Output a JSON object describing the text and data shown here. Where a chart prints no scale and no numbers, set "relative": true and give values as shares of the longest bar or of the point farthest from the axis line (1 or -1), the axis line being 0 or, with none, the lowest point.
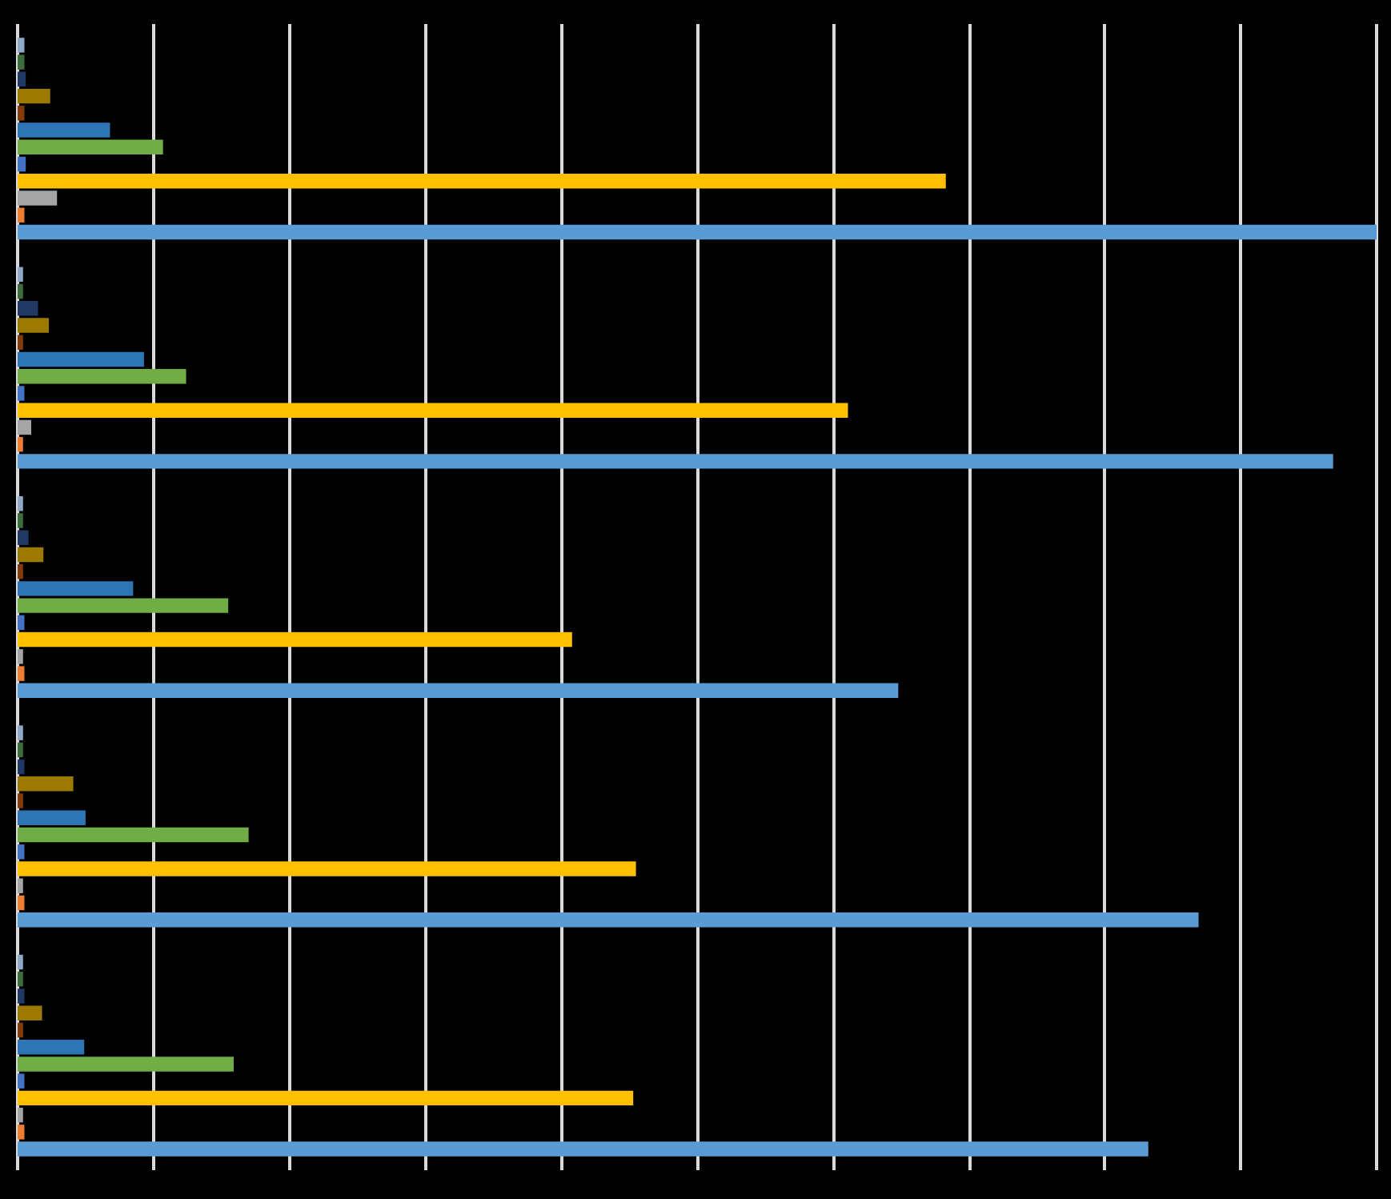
{
  "chart_data": {
    "type": "bar",
    "orientation": "horizontal",
    "relative": true,
    "grid": "x",
    "categories": [
      null,
      null,
      null,
      null,
      null
    ],
    "series": [
      {
        "color": "#8fa9c9",
        "values": [
          0.005,
          0.004,
          0.004,
          0.004,
          0.004
        ]
      },
      {
        "color": "#3c6e3c",
        "values": [
          0.005,
          0.004,
          0.004,
          0.004,
          0.004
        ]
      },
      {
        "color": "#203864",
        "values": [
          0.006,
          0.015,
          0.008,
          0.005,
          0.005
        ]
      },
      {
        "color": "#9c7a00",
        "values": [
          0.024,
          0.023,
          0.019,
          0.041,
          0.018
        ]
      },
      {
        "color": "#843c0c",
        "values": [
          0.005,
          0.004,
          0.004,
          0.004,
          0.004
        ]
      },
      {
        "color": "#2e75b6",
        "values": [
          0.068,
          0.093,
          0.085,
          0.05,
          0.049
        ]
      },
      {
        "color": "#70ad47",
        "values": [
          0.107,
          0.124,
          0.155,
          0.17,
          0.159
        ]
      },
      {
        "color": "#4472c4",
        "values": [
          0.006,
          0.005,
          0.005,
          0.005,
          0.005
        ]
      },
      {
        "color": "#ffc000",
        "values": [
          0.683,
          0.611,
          0.408,
          0.455,
          0.453
        ]
      },
      {
        "color": "#a5a5a5",
        "values": [
          0.029,
          0.01,
          0.004,
          0.004,
          0.004
        ]
      },
      {
        "color": "#ed7d31",
        "values": [
          0.005,
          0.004,
          0.005,
          0.005,
          0.005
        ]
      },
      {
        "color": "#5b9bd5",
        "values": [
          1,
          0.968,
          0.648,
          0.869,
          0.832
        ]
      }
    ]
  }
}
